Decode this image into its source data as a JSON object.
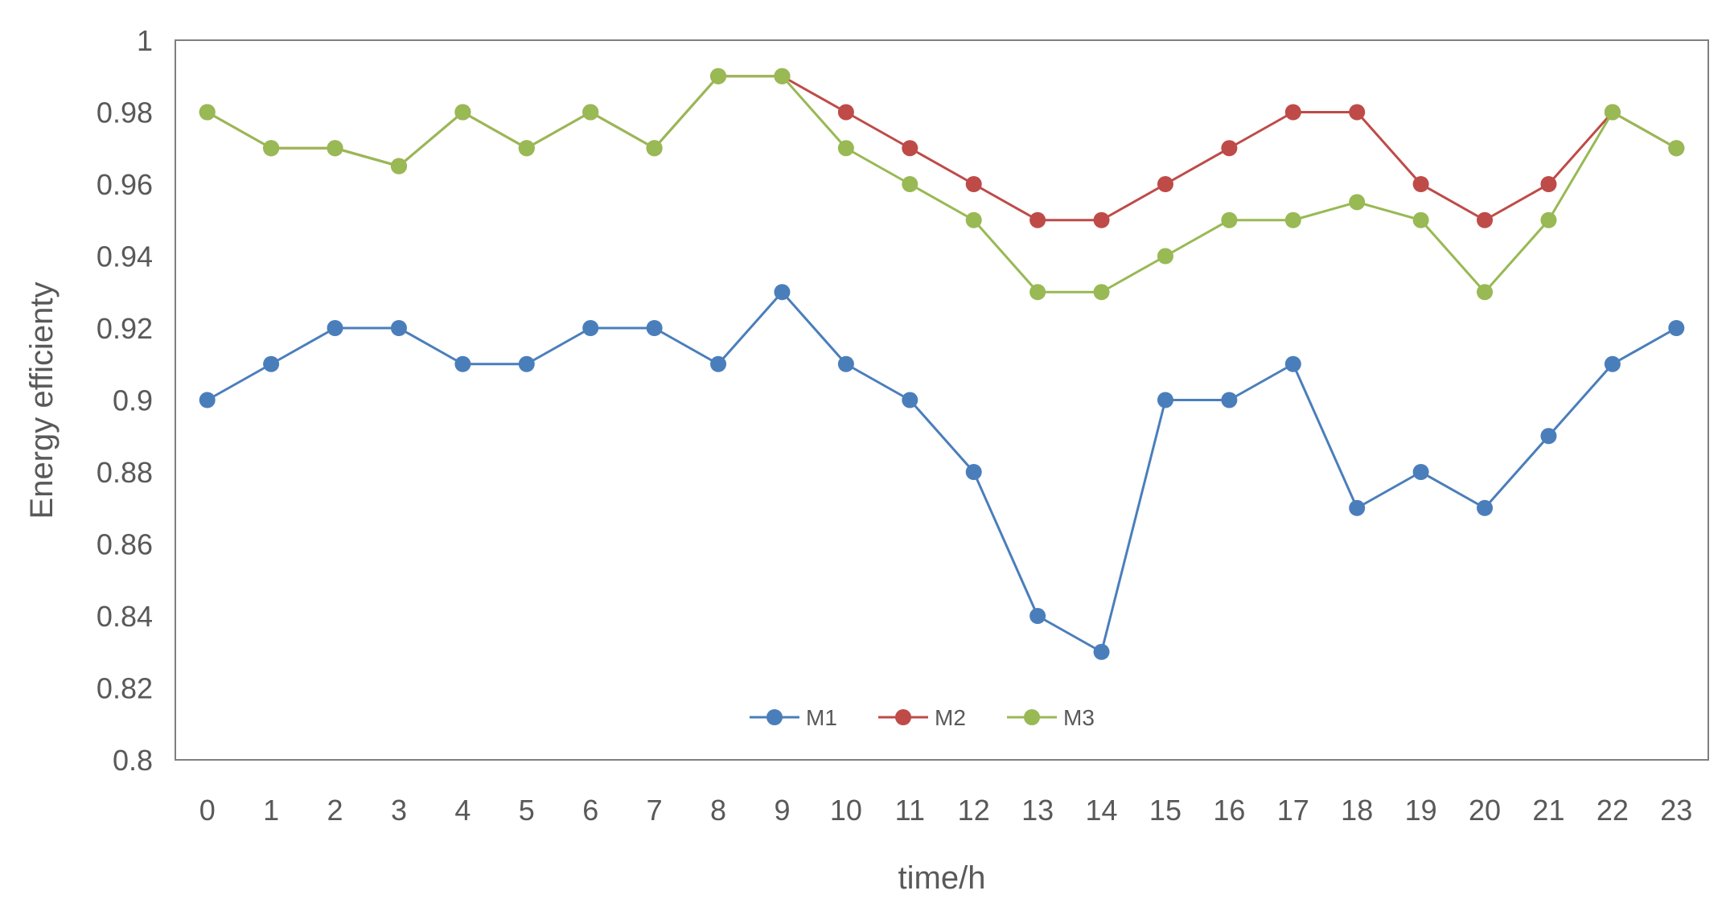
{
  "chart_data": {
    "type": "line",
    "title": "",
    "xlabel": "time/h",
    "ylabel": "Energy efficienty",
    "categories": [
      "0",
      "1",
      "2",
      "3",
      "4",
      "5",
      "6",
      "7",
      "8",
      "9",
      "10",
      "11",
      "12",
      "13",
      "14",
      "15",
      "16",
      "17",
      "18",
      "19",
      "20",
      "21",
      "22",
      "23"
    ],
    "ylim": [
      0.8,
      1
    ],
    "yticks": [
      "0.8",
      "0.82",
      "0.84",
      "0.86",
      "0.88",
      "0.9",
      "0.92",
      "0.94",
      "0.96",
      "0.98",
      "1"
    ],
    "grid": false,
    "legend_position": "bottom-center",
    "series": [
      {
        "name": "M1",
        "color": "#4a7ebb",
        "values": [
          0.9,
          0.91,
          0.92,
          0.92,
          0.91,
          0.91,
          0.92,
          0.92,
          0.91,
          0.93,
          0.91,
          0.9,
          0.88,
          0.84,
          0.83,
          0.9,
          0.9,
          0.91,
          0.87,
          0.88,
          0.87,
          0.89,
          0.91,
          0.92
        ]
      },
      {
        "name": "M2",
        "color": "#be4b48",
        "values": [
          0.98,
          0.97,
          0.97,
          0.965,
          0.98,
          0.97,
          0.98,
          0.97,
          0.99,
          0.99,
          0.98,
          0.97,
          0.96,
          0.95,
          0.95,
          0.96,
          0.97,
          0.98,
          0.98,
          0.96,
          0.95,
          0.96,
          0.98,
          0.97
        ]
      },
      {
        "name": "M3",
        "color": "#98b954",
        "values": [
          0.98,
          0.97,
          0.97,
          0.965,
          0.98,
          0.97,
          0.98,
          0.97,
          0.99,
          0.99,
          0.97,
          0.96,
          0.95,
          0.93,
          0.93,
          0.94,
          0.95,
          0.95,
          0.955,
          0.95,
          0.93,
          0.95,
          0.98,
          0.97
        ]
      }
    ]
  }
}
